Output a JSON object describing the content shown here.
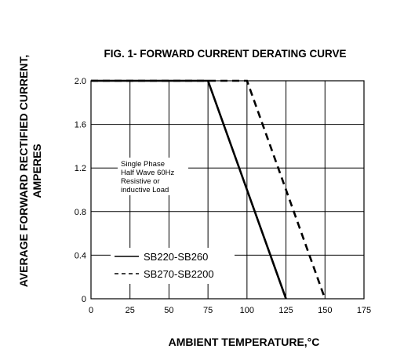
{
  "chart_data": {
    "type": "line",
    "title": "FIG. 1- FORWARD CURRENT DERATING CURVE",
    "xlabel": "AMBIENT TEMPERATURE,°C",
    "ylabel": "AVERAGE FORWARD RECTIFIED CURRENT,",
    "ylabel2": "AMPERES",
    "xlim": [
      0,
      175
    ],
    "ylim": [
      0,
      2.0
    ],
    "xticks": [
      0,
      25,
      50,
      75,
      100,
      125,
      150,
      175
    ],
    "xtick_labels": [
      "0",
      "25",
      "50",
      "75",
      "100",
      "125",
      "150",
      "175"
    ],
    "yticks": [
      0,
      0.4,
      0.8,
      1.2,
      1.6,
      2.0
    ],
    "ytick_labels": [
      "0",
      "0.4",
      "0.8",
      "1.2",
      "1.6",
      "2.0"
    ],
    "grid": true,
    "note": [
      "Single Phase",
      "Half Wave 60Hz",
      "Resistive or",
      "inductive Load"
    ],
    "series": [
      {
        "name": "SB220-SB260",
        "style": "solid",
        "color": "#000000",
        "x": [
          0,
          75,
          125
        ],
        "y": [
          2.0,
          2.0,
          0
        ]
      },
      {
        "name": "SB270-SB2200",
        "style": "dashed",
        "color": "#000000",
        "x": [
          0,
          100,
          150
        ],
        "y": [
          2.0,
          2.0,
          0
        ]
      }
    ]
  }
}
